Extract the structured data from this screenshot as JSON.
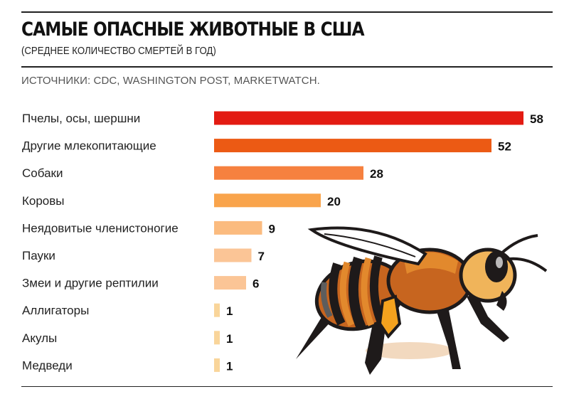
{
  "header": {
    "title": "САМЫЕ ОПАСНЫЕ ЖИВОТНЫЕ В США",
    "subtitle": "(СРЕДНЕЕ КОЛИЧЕСТВО СМЕРТЕЙ В ГОД)",
    "sources": "ИСТОЧНИКИ: CDC, WASHINGTON POST, MARKETWATCH."
  },
  "chart_data": {
    "type": "bar",
    "orientation": "horizontal",
    "categories": [
      "Пчелы, осы, шершни",
      "Другие млекопитающие",
      "Собаки",
      "Коровы",
      "Неядовитые членистоногие",
      "Пауки",
      "Змеи и другие рептилии",
      "Аллигаторы",
      "Акулы",
      "Медведи"
    ],
    "values": [
      58,
      52,
      28,
      20,
      9,
      7,
      6,
      1,
      1,
      1
    ],
    "colors": [
      "#e31b12",
      "#ec5a14",
      "#f6813f",
      "#f9a44c",
      "#fbbb7f",
      "#fbc596",
      "#fbc596",
      "#f9d59a",
      "#f9d59a",
      "#f9d59a"
    ],
    "xlim": [
      0,
      58
    ],
    "grid": false,
    "legend": "none"
  },
  "illustration": {
    "name": "bee-illustration",
    "colors": {
      "outline": "#1e1a1a",
      "amber": "#c7651f",
      "orange": "#e2892d",
      "light": "#f0b45a",
      "yellow": "#f4a21e",
      "grey": "#5d5d5d",
      "wing": "#ffffff"
    }
  }
}
